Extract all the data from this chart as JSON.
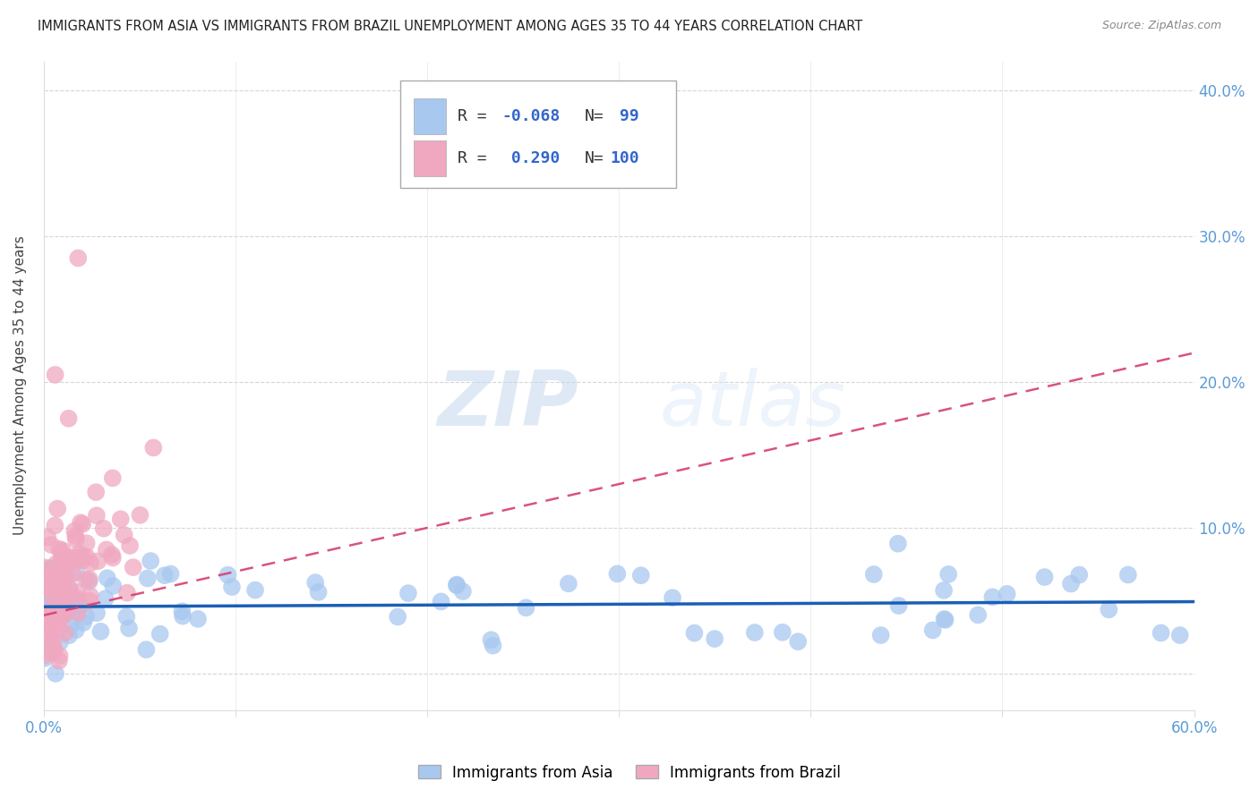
{
  "title": "IMMIGRANTS FROM ASIA VS IMMIGRANTS FROM BRAZIL UNEMPLOYMENT AMONG AGES 35 TO 44 YEARS CORRELATION CHART",
  "source": "Source: ZipAtlas.com",
  "ylabel": "Unemployment Among Ages 35 to 44 years",
  "legend_asia": "Immigrants from Asia",
  "legend_brazil": "Immigrants from Brazil",
  "R_asia": -0.068,
  "N_asia": 99,
  "R_brazil": 0.29,
  "N_brazil": 100,
  "color_asia": "#a8c8f0",
  "color_brazil": "#f0a8c0",
  "line_color_asia": "#1a5fb5",
  "line_color_brazil": "#d44070",
  "watermark_zip": "ZIP",
  "watermark_atlas": "atlas",
  "xlim": [
    0.0,
    0.6
  ],
  "ylim": [
    -0.025,
    0.42
  ],
  "seed_asia": 42,
  "seed_brazil": 7
}
